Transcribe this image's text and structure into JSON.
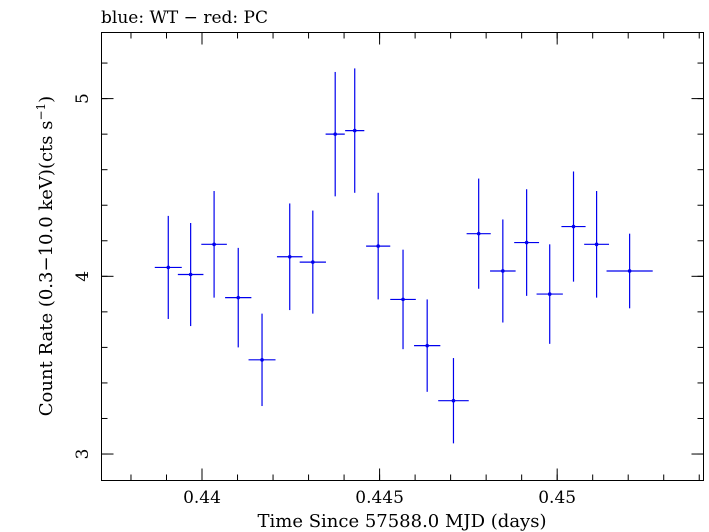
{
  "chart_data": {
    "type": "scatter",
    "title": "blue: WT − red: PC",
    "xlabel": "Time Since 57588.0 MJD (days)",
    "ylabel_main": "Count Rate (0.3−10.0 keV)(cts s",
    "ylabel_sup": "−1",
    "ylabel_end": ")",
    "xlim": [
      0.43717,
      0.45412
    ],
    "ylim": [
      2.851,
      5.372
    ],
    "xticks": [
      {
        "value": 0.44,
        "label": "0.44"
      },
      {
        "value": 0.445,
        "label": "0.445"
      },
      {
        "value": 0.45,
        "label": "0.45"
      }
    ],
    "x_minor_step": 0.001,
    "yticks": [
      {
        "value": 3,
        "label": "3"
      },
      {
        "value": 4,
        "label": "4"
      },
      {
        "value": 5,
        "label": "5"
      }
    ],
    "y_minor_step": 0.2,
    "color": "#0000ee",
    "series": [
      {
        "points": [
          {
            "x": 0.43905,
            "xerr": 0.00038,
            "y": 4.05,
            "yerr": 0.29
          },
          {
            "x": 0.43968,
            "xerr": 0.00036,
            "y": 4.01,
            "yerr": 0.29
          },
          {
            "x": 0.44034,
            "xerr": 0.00036,
            "y": 4.18,
            "yerr": 0.3
          },
          {
            "x": 0.44102,
            "xerr": 0.00037,
            "y": 3.88,
            "yerr": 0.28
          },
          {
            "x": 0.44169,
            "xerr": 0.00038,
            "y": 3.53,
            "yerr": 0.26
          },
          {
            "x": 0.44247,
            "xerr": 0.00036,
            "y": 4.11,
            "yerr": 0.3
          },
          {
            "x": 0.44312,
            "xerr": 0.00037,
            "y": 4.08,
            "yerr": 0.29
          },
          {
            "x": 0.44375,
            "xerr": 0.00027,
            "y": 4.8,
            "yerr": 0.35
          },
          {
            "x": 0.4443,
            "xerr": 0.00027,
            "y": 4.82,
            "yerr": 0.35
          },
          {
            "x": 0.44496,
            "xerr": 0.00034,
            "y": 4.17,
            "yerr": 0.3
          },
          {
            "x": 0.44566,
            "xerr": 0.00036,
            "y": 3.87,
            "yerr": 0.28
          },
          {
            "x": 0.44634,
            "xerr": 0.00037,
            "y": 3.61,
            "yerr": 0.26
          },
          {
            "x": 0.44708,
            "xerr": 0.00043,
            "y": 3.3,
            "yerr": 0.24
          },
          {
            "x": 0.44779,
            "xerr": 0.00034,
            "y": 4.24,
            "yerr": 0.31
          },
          {
            "x": 0.44847,
            "xerr": 0.00036,
            "y": 4.03,
            "yerr": 0.29
          },
          {
            "x": 0.44914,
            "xerr": 0.00035,
            "y": 4.19,
            "yerr": 0.3
          },
          {
            "x": 0.44979,
            "xerr": 0.00037,
            "y": 3.9,
            "yerr": 0.28
          },
          {
            "x": 0.45046,
            "xerr": 0.00034,
            "y": 4.28,
            "yerr": 0.31
          },
          {
            "x": 0.45111,
            "xerr": 0.00035,
            "y": 4.18,
            "yerr": 0.3
          },
          {
            "x": 0.45204,
            "xerr": 0.00065,
            "y": 4.03,
            "yerr": 0.21
          }
        ]
      }
    ]
  }
}
